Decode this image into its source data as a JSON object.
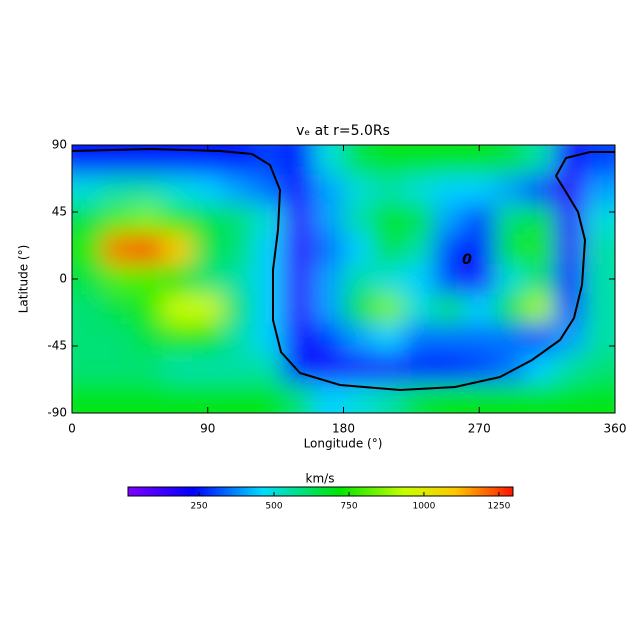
{
  "chart_data": {
    "type": "heatmap",
    "title": "vₑ at r=5.0Rs",
    "x_label": "Longitude (°)",
    "y_label": "Latitude (°)",
    "x": [
      10,
      30,
      50,
      70,
      90,
      110,
      130,
      150,
      170,
      190,
      210,
      230,
      250,
      270,
      290,
      310,
      330,
      350
    ],
    "y": [
      80,
      60,
      40,
      20,
      0,
      -20,
      -40,
      -60,
      -80
    ],
    "values": [
      [
        250,
        250,
        250,
        250,
        250,
        250,
        300,
        250,
        500,
        650,
        700,
        700,
        700,
        700,
        650,
        550,
        200,
        300
      ],
      [
        500,
        550,
        550,
        500,
        450,
        400,
        350,
        200,
        400,
        500,
        550,
        500,
        450,
        450,
        400,
        300,
        150,
        400
      ],
      [
        650,
        800,
        850,
        750,
        650,
        600,
        500,
        150,
        400,
        550,
        700,
        650,
        400,
        300,
        600,
        650,
        150,
        500
      ],
      [
        750,
        1200,
        1250,
        1100,
        650,
        600,
        450,
        150,
        350,
        450,
        650,
        550,
        300,
        250,
        650,
        750,
        150,
        550
      ],
      [
        650,
        800,
        800,
        700,
        600,
        550,
        450,
        150,
        400,
        550,
        500,
        450,
        300,
        200,
        500,
        600,
        200,
        550
      ],
      [
        600,
        650,
        750,
        950,
        950,
        600,
        450,
        150,
        400,
        650,
        850,
        500,
        600,
        450,
        650,
        900,
        300,
        550
      ],
      [
        600,
        600,
        650,
        750,
        700,
        550,
        450,
        200,
        300,
        400,
        450,
        350,
        350,
        350,
        350,
        300,
        400,
        550
      ],
      [
        600,
        600,
        600,
        550,
        550,
        550,
        550,
        250,
        200,
        200,
        200,
        250,
        250,
        300,
        350,
        450,
        550,
        600
      ],
      [
        700,
        700,
        700,
        700,
        700,
        700,
        700,
        600,
        450,
        500,
        550,
        650,
        700,
        700,
        700,
        700,
        700,
        700
      ]
    ],
    "xlim": [
      0,
      360
    ],
    "ylim": [
      -90,
      90
    ],
    "xticks": [
      0,
      90,
      180,
      270,
      360
    ],
    "yticks": [
      -90,
      -45,
      0,
      45,
      90
    ],
    "colormap": "rainbow",
    "clim": [
      13,
      1297
    ],
    "colorbar_label": "km/s",
    "colorbar_ticks": [
      250,
      500,
      750,
      1000,
      1250
    ],
    "contour_label": "0"
  }
}
